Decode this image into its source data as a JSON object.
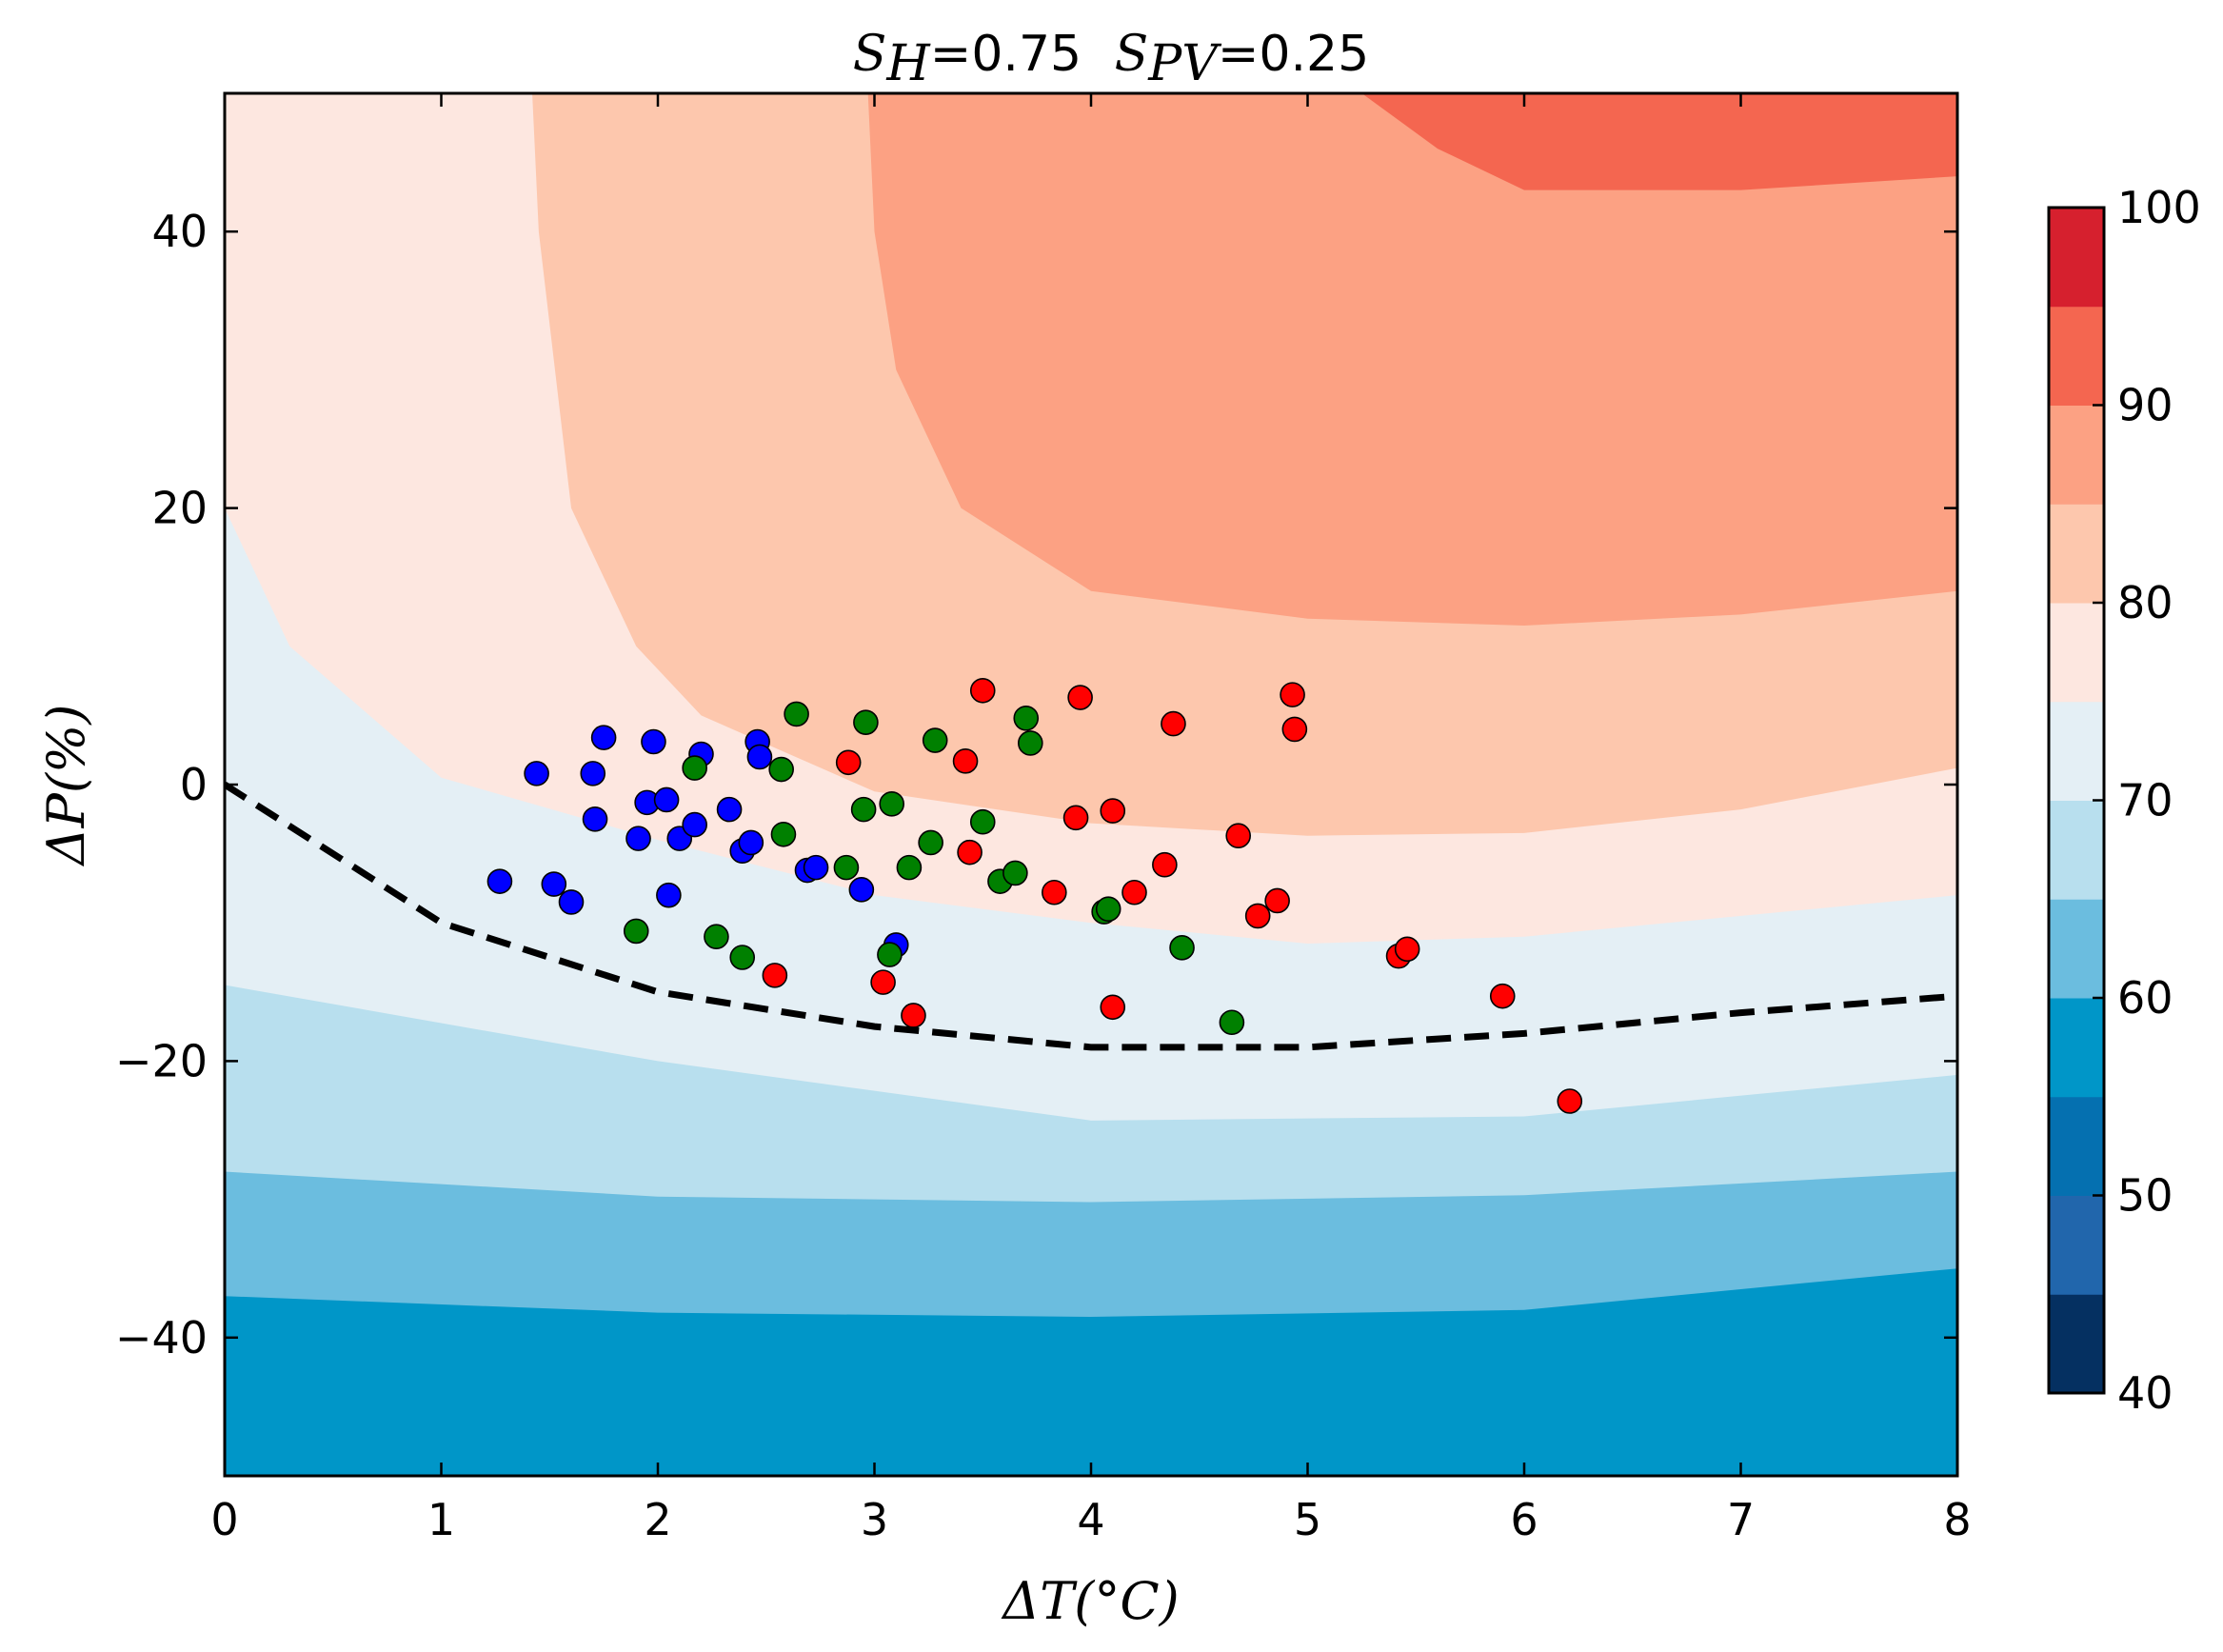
{
  "chart_data": {
    "type": "contour-scatter",
    "title": {
      "s_h_symbol": "S",
      "s_h_sub": "H",
      "s_h_value": "=0.75",
      "s_pv_symbol": "S",
      "s_pv_sub": "PV",
      "s_pv_value": "=0.25"
    },
    "xlabel": "ΔT(°C)",
    "ylabel": "ΔP(%)",
    "xlim": [
      0,
      8
    ],
    "ylim": [
      -50,
      50
    ],
    "x_ticks": [
      0,
      1,
      2,
      3,
      4,
      5,
      6,
      7,
      8
    ],
    "x_tick_labels": [
      "0",
      "1",
      "2",
      "3",
      "4",
      "5",
      "6",
      "7",
      "8"
    ],
    "y_ticks": [
      -40,
      -20,
      0,
      20,
      40
    ],
    "y_tick_labels": [
      "−40",
      "−20",
      "0",
      "20",
      "40"
    ],
    "colorbar": {
      "levels": [
        40,
        45,
        50,
        55,
        60,
        65,
        70,
        75,
        80,
        85,
        90,
        95,
        100
      ],
      "colors": [
        "#053061",
        "#2166ac",
        "#0570b0",
        "#0096c8",
        "#6bbddf",
        "#b8dfee",
        "#e4eff5",
        "#fde7e0",
        "#fdc7ad",
        "#fca183",
        "#f46650",
        "#d6202e",
        "#9e0124"
      ],
      "tick_values": [
        40,
        50,
        60,
        70,
        80,
        90,
        100
      ],
      "tick_labels": [
        "40",
        "50",
        "60",
        "70",
        "80",
        "90",
        "100"
      ]
    },
    "contour_bands": [
      {
        "lower": 55,
        "color": "#6bbddf",
        "boundary": [
          [
            0,
            -37
          ],
          [
            2,
            -38.2
          ],
          [
            4,
            -38.5
          ],
          [
            6,
            -38
          ],
          [
            8,
            -35
          ]
        ]
      },
      {
        "lower": 60,
        "color": "#b8dfee",
        "boundary": [
          [
            0,
            -28
          ],
          [
            2,
            -29.8
          ],
          [
            4,
            -30.2
          ],
          [
            6,
            -29.7
          ],
          [
            8,
            -28
          ]
        ]
      },
      {
        "lower": 65,
        "color": "#e4eff5",
        "boundary": [
          [
            0,
            -14.5
          ],
          [
            2,
            -20
          ],
          [
            4,
            -24.3
          ],
          [
            6,
            -24
          ],
          [
            8,
            -21
          ]
        ]
      },
      {
        "lower": 70,
        "color": "#fde7e0",
        "boundary": [
          [
            0,
            20
          ],
          [
            0.3,
            10
          ],
          [
            1,
            0.5
          ],
          [
            2,
            -4
          ],
          [
            3,
            -8
          ],
          [
            4,
            -10
          ],
          [
            5,
            -11.5
          ],
          [
            6,
            -11
          ],
          [
            8,
            -8
          ]
        ]
      },
      {
        "lower": 75,
        "color": "#fdc7ad",
        "boundary": [
          [
            1.42,
            50
          ],
          [
            1.45,
            40
          ],
          [
            1.6,
            20
          ],
          [
            1.9,
            10
          ],
          [
            2.2,
            5
          ],
          [
            3,
            -0.5
          ],
          [
            4,
            -2.8
          ],
          [
            5,
            -3.7
          ],
          [
            6,
            -3.5
          ],
          [
            7,
            -1.8
          ],
          [
            8,
            1.2
          ]
        ]
      },
      {
        "lower": 80,
        "color": "#fca183",
        "boundary": [
          [
            2.97,
            50
          ],
          [
            3,
            40
          ],
          [
            3.1,
            30
          ],
          [
            3.4,
            20
          ],
          [
            4,
            14
          ],
          [
            5,
            12
          ],
          [
            6,
            11.5
          ],
          [
            7,
            12.3
          ],
          [
            8,
            14
          ]
        ]
      },
      {
        "lower": 85,
        "color": "#f46650",
        "boundary": [
          [
            5.25,
            50
          ],
          [
            5.6,
            46
          ],
          [
            6,
            43
          ],
          [
            7,
            43
          ],
          [
            8,
            44
          ]
        ]
      }
    ],
    "threshold_line": {
      "style": "dashed",
      "points": [
        [
          0,
          0
        ],
        [
          1,
          -10
        ],
        [
          2,
          -15
        ],
        [
          3,
          -17.5
        ],
        [
          4,
          -19
        ],
        [
          4.5,
          -19
        ],
        [
          5,
          -19
        ],
        [
          5.5,
          -18.5
        ],
        [
          6,
          -18
        ],
        [
          7,
          -16.5
        ],
        [
          8,
          -15.3
        ]
      ]
    },
    "series": [
      {
        "name": "blue",
        "color": "#0000ff",
        "points": [
          [
            1.27,
            -7
          ],
          [
            1.44,
            0.8
          ],
          [
            1.52,
            -7.2
          ],
          [
            1.6,
            -8.5
          ],
          [
            1.7,
            0.8
          ],
          [
            1.71,
            -2.5
          ],
          [
            1.75,
            3.4
          ],
          [
            1.91,
            -3.9
          ],
          [
            1.95,
            -1.3
          ],
          [
            1.98,
            3.1
          ],
          [
            2.04,
            -1.1
          ],
          [
            2.05,
            -8
          ],
          [
            2.1,
            -3.9
          ],
          [
            2.17,
            -2.9
          ],
          [
            2.2,
            2.2
          ],
          [
            2.33,
            -1.8
          ],
          [
            2.39,
            -4.8
          ],
          [
            2.43,
            -4.2
          ],
          [
            2.46,
            3.1
          ],
          [
            2.47,
            2
          ],
          [
            2.69,
            -6.2
          ],
          [
            2.73,
            -6
          ],
          [
            2.94,
            -7.6
          ],
          [
            3.1,
            -11.6
          ]
        ]
      },
      {
        "name": "green",
        "color": "#008000",
        "points": [
          [
            1.9,
            -10.6
          ],
          [
            2.17,
            1.2
          ],
          [
            2.27,
            -11
          ],
          [
            2.39,
            -12.5
          ],
          [
            2.57,
            1.1
          ],
          [
            2.58,
            -3.6
          ],
          [
            2.64,
            5.1
          ],
          [
            2.87,
            -6
          ],
          [
            2.95,
            -1.8
          ],
          [
            2.96,
            4.5
          ],
          [
            3.07,
            -12.3
          ],
          [
            3.08,
            -1.4
          ],
          [
            3.16,
            -6
          ],
          [
            3.26,
            -4.2
          ],
          [
            3.28,
            3.2
          ],
          [
            3.5,
            -2.7
          ],
          [
            3.58,
            -7
          ],
          [
            3.65,
            -6.4
          ],
          [
            3.7,
            4.8
          ],
          [
            3.72,
            3
          ],
          [
            4.06,
            -9.2
          ],
          [
            4.08,
            -9
          ],
          [
            4.42,
            -11.8
          ],
          [
            4.65,
            -17.2
          ]
        ]
      },
      {
        "name": "red",
        "color": "#ff0000",
        "points": [
          [
            2.54,
            -13.8
          ],
          [
            2.88,
            1.6
          ],
          [
            3.04,
            -14.3
          ],
          [
            3.18,
            -16.7
          ],
          [
            3.42,
            1.7
          ],
          [
            3.44,
            -4.9
          ],
          [
            3.5,
            6.8
          ],
          [
            3.83,
            -7.8
          ],
          [
            3.93,
            -2.4
          ],
          [
            3.95,
            6.3
          ],
          [
            4.1,
            -16.1
          ],
          [
            4.1,
            -1.9
          ],
          [
            4.2,
            -7.8
          ],
          [
            4.34,
            -5.8
          ],
          [
            4.38,
            4.4
          ],
          [
            4.68,
            -3.7
          ],
          [
            4.77,
            -9.5
          ],
          [
            4.86,
            -8.4
          ],
          [
            4.93,
            6.5
          ],
          [
            4.94,
            4
          ],
          [
            5.42,
            -12.4
          ],
          [
            5.46,
            -11.9
          ],
          [
            5.9,
            -15.3
          ],
          [
            6.21,
            -22.9
          ]
        ]
      }
    ]
  }
}
